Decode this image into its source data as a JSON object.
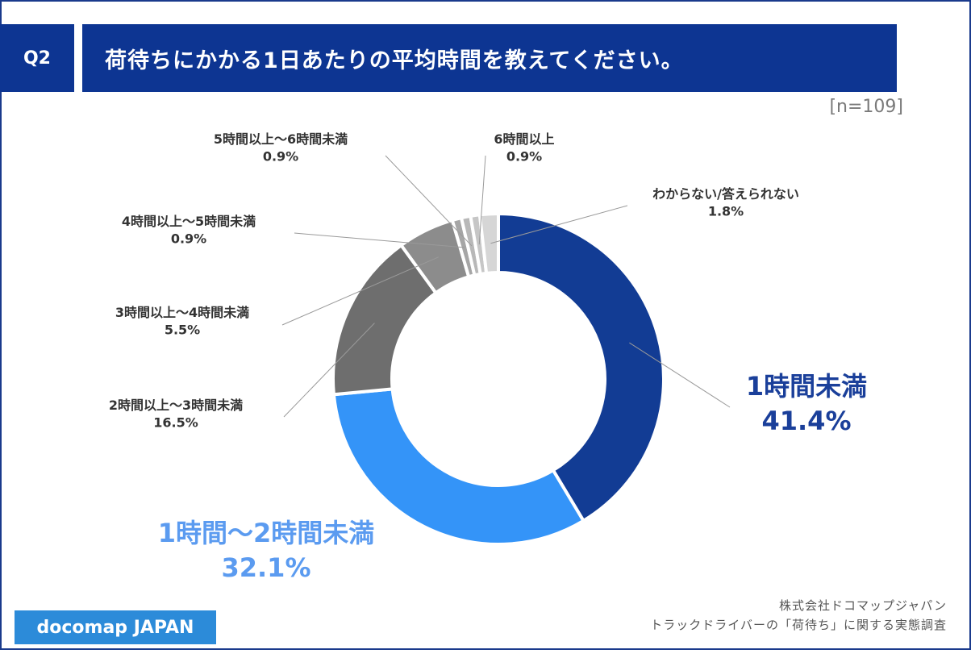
{
  "header": {
    "question_number": "Q2",
    "title": "荷待ちにかかる1日あたりの平均時間を教えてください。",
    "sample_size": "[n=109]"
  },
  "footer": {
    "logo": "docomap JAPAN",
    "company": "株式会社ドコマップジャパン",
    "survey": "トラックドライバーの「荷待ち」に関する実態調査"
  },
  "colors": {
    "brand_navy": "#0d3592",
    "logo_blue": "#2c8bd9"
  },
  "chart_data": {
    "type": "pie",
    "donut": true,
    "title": "",
    "categories": [
      "1時間未満",
      "1時間〜2時間未満",
      "2時間以上〜3時間未満",
      "3時間以上〜4時間未満",
      "4時間以上〜5時間未満",
      "5時間以上〜6時間未満",
      "6時間以上",
      "わからない/答えられない"
    ],
    "values": [
      41.4,
      32.1,
      16.5,
      5.5,
      0.9,
      0.9,
      0.9,
      1.8
    ],
    "value_labels": [
      "41.4%",
      "32.1%",
      "16.5%",
      "5.5%",
      "0.9%",
      "0.9%",
      "0.9%",
      "1.8%"
    ],
    "colors": [
      "#123c94",
      "#3494f8",
      "#6e6e6e",
      "#8c8c8c",
      "#a6a6a6",
      "#b8b8b8",
      "#c6c6c6",
      "#d6d6d6"
    ],
    "label_colors": [
      "#1a3f9a",
      "#5b9bf0",
      "#333333",
      "#333333",
      "#333333",
      "#333333",
      "#333333",
      "#333333"
    ],
    "start_angle": "12 o'clock",
    "direction": "clockwise",
    "legend": "none"
  }
}
